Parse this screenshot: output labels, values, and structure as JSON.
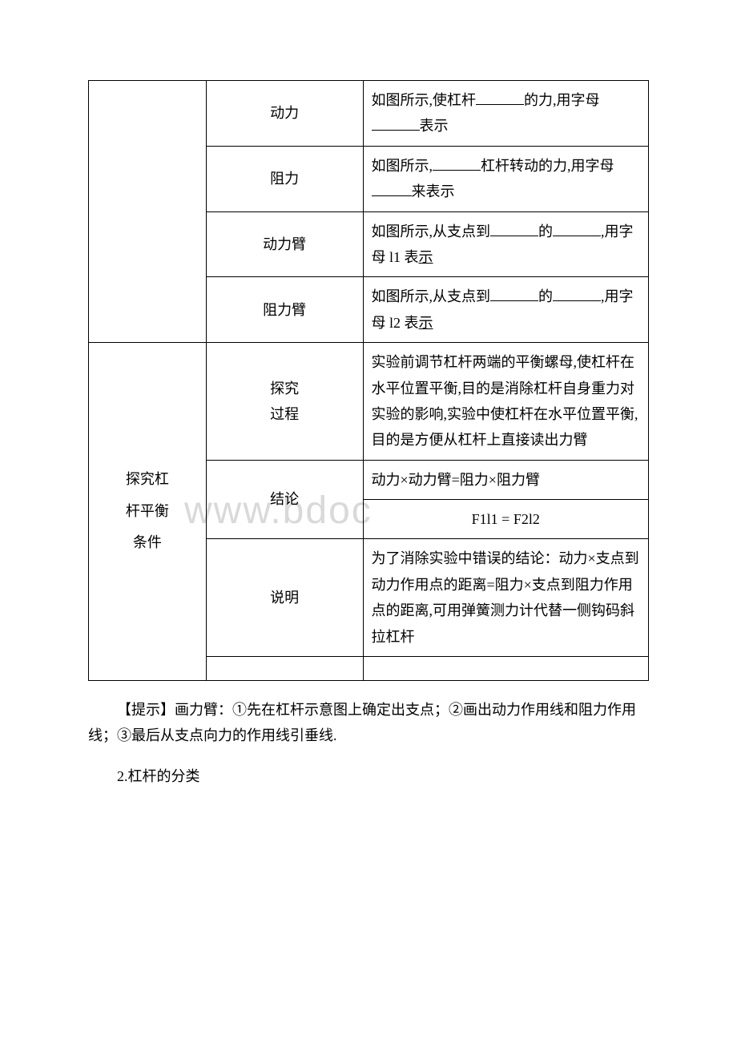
{
  "watermark": "www.bdoc",
  "table": {
    "rows": [
      {
        "col2": "动力",
        "col3_prefix": "如图所示,使杠杆",
        "col3_mid": "的力,用字母",
        "col3_suffix": "表示"
      },
      {
        "col2": "阻力",
        "col3_prefix": "如图所示,",
        "col3_mid": "杠杆转动的力,用字母",
        "col3_suffix": "来表示"
      },
      {
        "col2": "动力臂",
        "col3_prefix": "如图所示,从支点到",
        "col3_mid": "的",
        "col3_suffix": ",用字母 l1 表",
        "col3_end": "示"
      },
      {
        "col2": "阻力臂",
        "col3_prefix": "如图所示,从支点到",
        "col3_mid": "的",
        "col3_suffix": ",用字母 l2 表",
        "col3_end": "示"
      }
    ],
    "section2": {
      "col1_line1": "探究杠",
      "col1_line2": "杆平衡",
      "col1_line3": "条件",
      "rows": [
        {
          "col2_line1": "探究",
          "col2_line2": "过程",
          "col3": "实验前调节杠杆两端的平衡螺母,使杠杆在水平位置平衡,目的是消除杠杆自身重力对实验的影响,实验中使杠杆在水平位置平衡,目的是方便从杠杆上直接读出力臂"
        },
        {
          "col2": "结论",
          "col3_line1": "动力×动力臂=阻力×阻力臂",
          "col3_line2": "F1l1 = F2l2"
        },
        {
          "col2": "说明",
          "col3": "为了消除实验中错误的结论：动力×支点到动力作用点的距离=阻力×支点到阻力作用点的距离,可用弹簧测力计代替一侧钩码斜拉杠杆"
        }
      ]
    }
  },
  "tip": "【提示】画力臂：①先在杠杆示意图上确定出支点；②画出动力作用线和阻力作用线；③最后从支点向力的作用线引垂线.",
  "heading2": "2.杠杆的分类"
}
